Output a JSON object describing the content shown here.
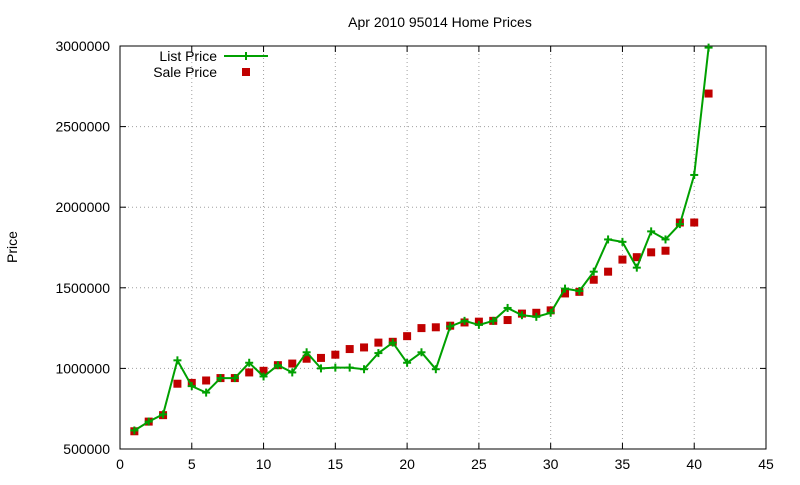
{
  "chart_data": {
    "type": "scatter",
    "title": "Apr 2010 95014 Home Prices",
    "xlabel": "",
    "ylabel": "Price",
    "xlim": [
      0,
      45
    ],
    "ylim": [
      500000,
      3000000
    ],
    "xticks": [
      "0",
      "5",
      "10",
      "15",
      "20",
      "25",
      "30",
      "35",
      "40",
      "45"
    ],
    "yticks": [
      "500000",
      "1000000",
      "1500000",
      "2000000",
      "2500000",
      "3000000"
    ],
    "grid": true,
    "legend_position": "top-left",
    "x": [
      1,
      2,
      3,
      4,
      5,
      6,
      7,
      8,
      9,
      10,
      11,
      12,
      13,
      14,
      15,
      16,
      17,
      18,
      19,
      20,
      21,
      22,
      23,
      24,
      25,
      26,
      27,
      28,
      29,
      30,
      31,
      32,
      33,
      34,
      35,
      36,
      37,
      38,
      39,
      40,
      41
    ],
    "series": [
      {
        "name": "List Price",
        "style": "linespoints",
        "color": "#00a000",
        "values": [
          615000,
          670000,
          715000,
          1050000,
          890000,
          850000,
          940000,
          940000,
          1035000,
          950000,
          1020000,
          975000,
          1100000,
          1000000,
          1005000,
          1005000,
          995000,
          1095000,
          1160000,
          1035000,
          1100000,
          995000,
          1260000,
          1295000,
          1270000,
          1295000,
          1375000,
          1330000,
          1320000,
          1345000,
          1495000,
          1480000,
          1600000,
          1800000,
          1785000,
          1625000,
          1850000,
          1800000,
          1895000,
          2200000,
          2990000
        ]
      },
      {
        "name": "Sale Price",
        "style": "points",
        "color": "#c00000",
        "values": [
          610000,
          670000,
          710000,
          905000,
          910000,
          925000,
          940000,
          940000,
          975000,
          985000,
          1020000,
          1030000,
          1060000,
          1065000,
          1085000,
          1120000,
          1130000,
          1160000,
          1165000,
          1200000,
          1250000,
          1255000,
          1265000,
          1285000,
          1290000,
          1295000,
          1300000,
          1340000,
          1345000,
          1360000,
          1465000,
          1475000,
          1550000,
          1600000,
          1675000,
          1690000,
          1720000,
          1730000,
          1905000,
          1905000,
          2705000
        ]
      }
    ]
  }
}
